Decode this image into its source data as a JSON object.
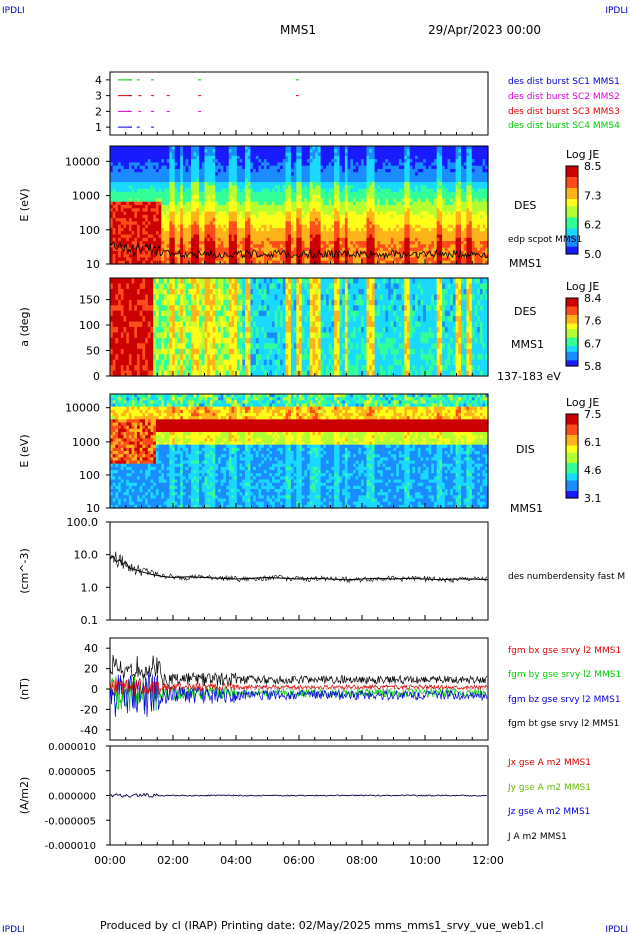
{
  "corner": {
    "tl": "IPDLI",
    "tr": "IPDLI",
    "bl": "IPDLI",
    "br": "IPDLI"
  },
  "header": {
    "spacecraft": "MMS1",
    "date": "29/Apr/2023 00:00"
  },
  "footer": {
    "text": "Produced by cl (IRAP)   Printing date: 02/May/2025   mms_mms1_srvy_vue_web1.cl"
  },
  "colors": {
    "cbar": [
      "#1a1aff",
      "#1a8cff",
      "#1ad9ff",
      "#33ff99",
      "#b3ff33",
      "#ffff1a",
      "#ffb31a",
      "#ff4d1a",
      "#cc0000"
    ]
  },
  "chart_data": [
    {
      "type": "scatter",
      "panel": "burst",
      "ylim": [
        0.5,
        4.5
      ],
      "yticks": [
        "1",
        "2",
        "3",
        "4"
      ],
      "series": [
        {
          "name": "des dist burst SC1 MMS1",
          "color": "#0000dd",
          "y": 1,
          "x": [
            0.25,
            0.6,
            0.85,
            1.3
          ]
        },
        {
          "name": "des dist burst SC2 MMS2",
          "color": "#dd00dd",
          "y": 2,
          "x": [
            0.25,
            0.55,
            0.9,
            1.3,
            1.8,
            2.8
          ]
        },
        {
          "name": "des dist burst SC3 MMS3",
          "color": "#dd0000",
          "y": 3,
          "x": [
            0.25,
            0.6,
            0.9,
            1.3,
            1.8,
            2.8,
            5.9
          ]
        },
        {
          "name": "des dist burst SC4 MMS4",
          "color": "#00cc00",
          "y": 4,
          "x": [
            0.25,
            0.6,
            0.85,
            1.3,
            2.8,
            5.9
          ]
        }
      ]
    },
    {
      "type": "heatmap",
      "panel": "des-energy",
      "ylabel": "E (eV)",
      "yscale": "log",
      "yticks": [
        "10",
        "100",
        "1000",
        "10000"
      ],
      "label": "DES",
      "sublabel": "MMS1",
      "overlay": "edp scpot MMS1",
      "cbar_title": "Log JE",
      "cbar_ticks": [
        "8.5",
        "7.3",
        "6.2",
        "5.0"
      ]
    },
    {
      "type": "heatmap",
      "panel": "des-pitch",
      "ylabel": "a (deg)",
      "yticks": [
        "0",
        "50",
        "100",
        "150"
      ],
      "label": "DES",
      "sublabel": "MMS1",
      "range": "137-183 eV",
      "cbar_title": "Log JE",
      "cbar_ticks": [
        "8.4",
        "7.6",
        "6.7",
        "5.8"
      ]
    },
    {
      "type": "heatmap",
      "panel": "dis-energy",
      "ylabel": "E (eV)",
      "yscale": "log",
      "yticks": [
        "10",
        "100",
        "1000",
        "10000"
      ],
      "label": "DIS",
      "sublabel": "MMS1",
      "cbar_title": "Log JE",
      "cbar_ticks": [
        "7.5",
        "6.1",
        "4.6",
        "3.1"
      ]
    },
    {
      "type": "line",
      "panel": "density",
      "ylabel": "(cm^-3)",
      "yscale": "log",
      "yticks": [
        "100.0",
        "10.0",
        "1.0",
        "0.1"
      ],
      "label": "des numberdensity fast M",
      "x": [
        0,
        0.1,
        0.2,
        0.3,
        0.4,
        0.5,
        0.6,
        0.8,
        1.0,
        1.3,
        1.6,
        2.0,
        2.5,
        3.0,
        3.5,
        4.0,
        4.5,
        5.0,
        5.5,
        6.0,
        6.5,
        7.0,
        7.5,
        8.0,
        8.5,
        9.0,
        9.5,
        10.0,
        10.5,
        11.0,
        11.5,
        12.0
      ],
      "y": [
        8,
        9,
        6,
        7,
        5,
        6,
        4,
        3.5,
        3,
        2.5,
        2.2,
        2.0,
        2.1,
        2.0,
        1.9,
        1.8,
        1.9,
        2.0,
        1.9,
        1.8,
        1.9,
        1.8,
        1.7,
        1.8,
        1.9,
        1.8,
        1.9,
        1.8,
        1.7,
        1.8,
        1.8,
        1.7
      ]
    },
    {
      "type": "line",
      "panel": "bfield",
      "ylabel": "(nT)",
      "ylim": [
        -50,
        50
      ],
      "yticks": [
        "40",
        "20",
        "0",
        "-20",
        "-40"
      ],
      "series": [
        {
          "name": "fgm bx gse srvy l2 MMS1",
          "color": "#dd0000"
        },
        {
          "name": "fgm by gse srvy l2 MMS1",
          "color": "#00cc00"
        },
        {
          "name": "fgm bz gse srvy l2 MMS1",
          "color": "#0000dd"
        },
        {
          "name": "fgm bt gse srvy l2 MMS1",
          "color": "#000000"
        }
      ]
    },
    {
      "type": "line",
      "panel": "current",
      "ylabel": "(A/m2)",
      "ylim": [
        -0.0001,
        0.0001
      ],
      "yticks": [
        "0.000010",
        "0.000005",
        "0.000000",
        "-0.000005",
        "-0.000010"
      ],
      "series": [
        {
          "name": "Jx gse A m2 MMS1",
          "color": "#dd0000"
        },
        {
          "name": "Jy gse A m2 MMS1",
          "color": "#66bb00"
        },
        {
          "name": "Jz gse A m2 MMS1",
          "color": "#0000dd"
        },
        {
          "name": "J A m2 MMS1",
          "color": "#000000"
        }
      ]
    }
  ],
  "xaxis": {
    "ticks": [
      "00:00",
      "02:00",
      "04:00",
      "06:00",
      "08:00",
      "10:00",
      "12:00"
    ],
    "xlim": [
      0,
      12
    ]
  }
}
